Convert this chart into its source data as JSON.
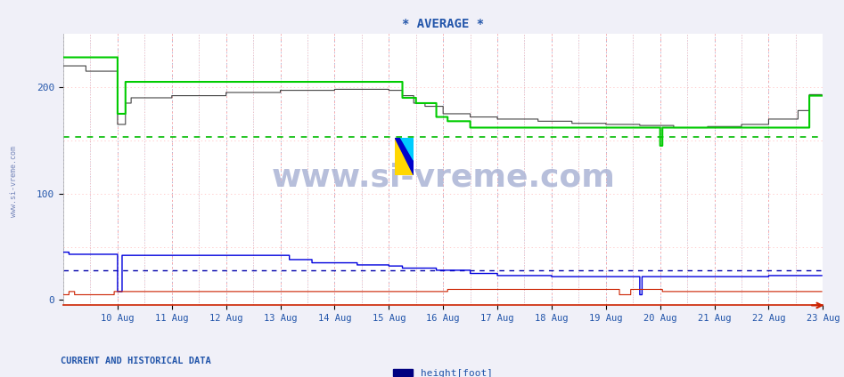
{
  "title": "* AVERAGE *",
  "background_color": "#f0f0f8",
  "plot_bg_color": "#ffffff",
  "x_day_labels": [
    "10 Aug",
    "11 Aug",
    "12 Aug",
    "13 Aug",
    "14 Aug",
    "15 Aug",
    "16 Aug",
    "17 Aug",
    "18 Aug",
    "19 Aug",
    "20 Aug",
    "21 Aug",
    "22 Aug",
    "23 Aug"
  ],
  "yticks": [
    0,
    100,
    200
  ],
  "ylim": [
    -5,
    250
  ],
  "xlim": [
    0,
    672
  ],
  "title_color": "#2255aa",
  "title_fontsize": 10,
  "axis_label_color": "#2255aa",
  "watermark": "www.si-vreme.com",
  "bottom_left_text": "CURRENT AND HISTORICAL DATA",
  "bottom_left_color": "#2255aa",
  "legend_label": "height[foot]",
  "legend_color": "#000080",
  "dashed_green_y": 153,
  "dashed_blue_y": 28,
  "green_line_color": "#00cc00",
  "black_line_color": "#444444",
  "blue_line_color": "#0000dd",
  "red_line_color": "#cc2200",
  "dashed_green_color": "#00bb00",
  "dashed_blue_color": "#0000aa",
  "grid_gray_color": "#aaaacc",
  "grid_red_color": "#ffaaaa"
}
